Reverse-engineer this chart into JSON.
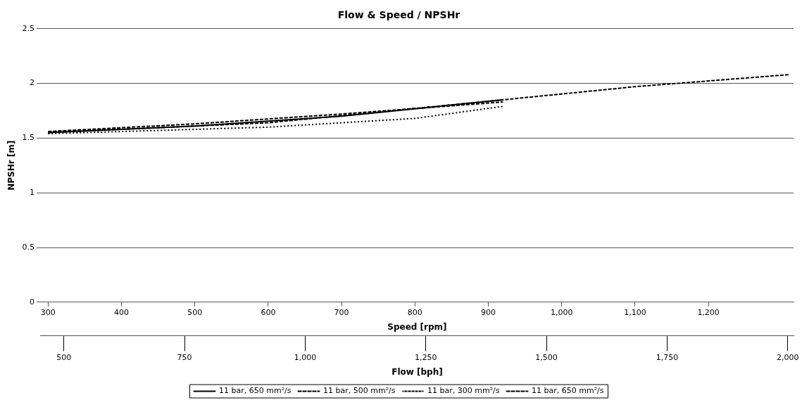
{
  "chart_data": {
    "type": "line",
    "title": "Flow & Speed / NPSHr",
    "xlabel": "Speed [rpm]",
    "ylabel": "NPSHr [m]",
    "x2label": "Flow [bph]",
    "xlim": [
      290,
      1316
    ],
    "xticks": [
      300,
      400,
      500,
      600,
      700,
      800,
      900,
      {
        "value": 1000,
        "label": "1,000"
      },
      {
        "value": 1100,
        "label": "1,100"
      },
      {
        "value": 1200,
        "label": "1,200"
      }
    ],
    "x2lim": [
      452,
      2012
    ],
    "x2ticks": [
      500,
      750,
      {
        "value": 1000,
        "label": "1,000"
      },
      {
        "value": 1250,
        "label": "1,250"
      },
      {
        "value": 1500,
        "label": "1,500"
      },
      {
        "value": 1750,
        "label": "1,750"
      },
      {
        "value": 2000,
        "label": "2,000"
      }
    ],
    "ylim": [
      0,
      2.5
    ],
    "yticks": [
      0,
      0.5,
      1,
      1.5,
      2,
      2.5
    ],
    "grid": "y",
    "legend": "bottom",
    "marker": "none",
    "series": [
      {
        "name": "11 bar, 650 mm²/s",
        "color": "#000000",
        "line_style": "solid",
        "x": [
          300,
          500,
          700,
          920
        ],
        "values": [
          1.55,
          1.61,
          1.7,
          1.85
        ]
      },
      {
        "name": "11 bar, 500 mm²/s",
        "color": "#000000",
        "line_style": "dashed",
        "x": [
          300,
          600,
          920,
          1100,
          1310
        ],
        "values": [
          1.55,
          1.64,
          1.85,
          1.97,
          2.08
        ]
      },
      {
        "name": "11 bar, 300 mm²/s",
        "color": "#000000",
        "line_style": "dotted",
        "x": [
          300,
          600,
          800,
          920
        ],
        "values": [
          1.54,
          1.6,
          1.68,
          1.79
        ]
      },
      {
        "name": "11 bar, 650 mm²/s",
        "color": "#000000",
        "line_style": "dashed",
        "x": [
          300,
          500,
          700,
          920
        ],
        "values": [
          1.56,
          1.63,
          1.72,
          1.83
        ]
      }
    ]
  }
}
